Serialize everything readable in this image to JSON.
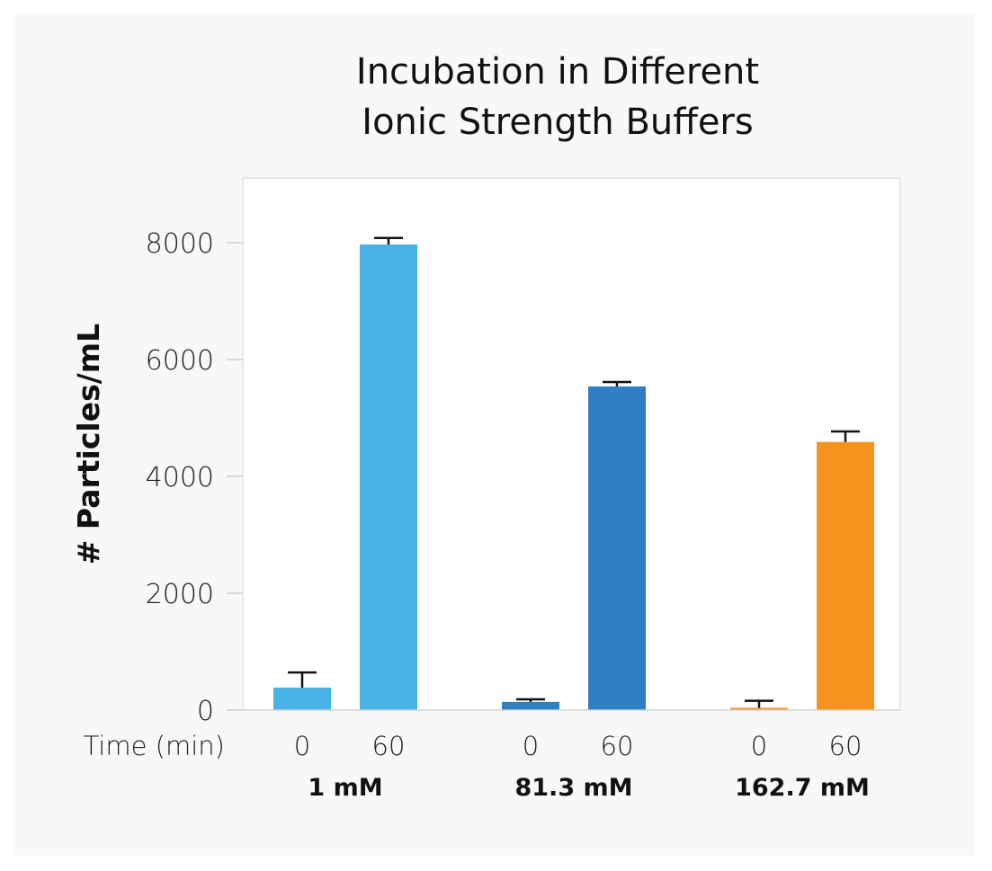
{
  "chart_data": {
    "type": "bar",
    "title": [
      "Incubation in Different",
      "Ionic Strength Buffers"
    ],
    "ylabel": "# Particles/mL",
    "xlabel": "Time (min)",
    "ylim": [
      0,
      9000
    ],
    "yticks": [
      0,
      2000,
      4000,
      6000,
      8000
    ],
    "grid": false,
    "groups": [
      {
        "name": "1 mM",
        "color": "#4ab1e4",
        "bars": [
          {
            "time": "0",
            "value": 385,
            "error": 260
          },
          {
            "time": "60",
            "value": 7970,
            "error": 110
          }
        ]
      },
      {
        "name": "81.3 mM",
        "color": "#317ec2",
        "bars": [
          {
            "time": "0",
            "value": 140,
            "error": 45
          },
          {
            "time": "60",
            "value": 5540,
            "error": 75
          }
        ]
      },
      {
        "name": "162.7 mM",
        "color": "#f6931f",
        "bars": [
          {
            "time": "0",
            "value": 40,
            "error": 120
          },
          {
            "time": "60",
            "value": 4590,
            "error": 180
          }
        ]
      }
    ]
  }
}
